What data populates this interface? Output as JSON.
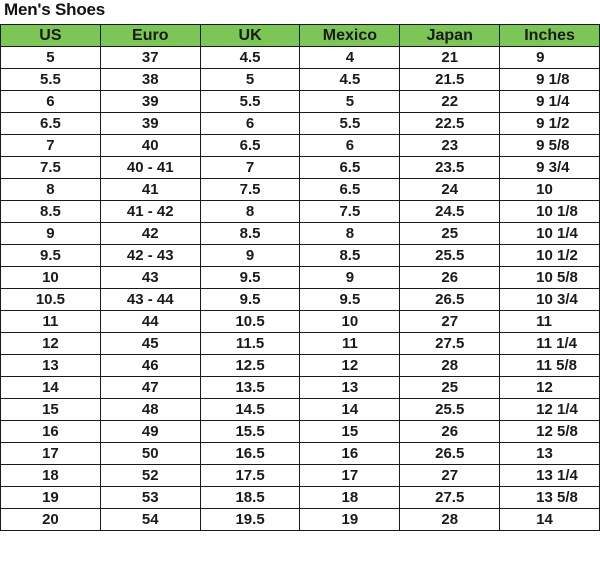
{
  "title": "Men's Shoes",
  "header_color": "#7cc655",
  "columns": [
    "US",
    "Euro",
    "UK",
    "Mexico",
    "Japan",
    "Inches"
  ],
  "rows": [
    [
      "5",
      "37",
      "4.5",
      "4",
      "21",
      "9"
    ],
    [
      "5.5",
      "38",
      "5",
      "4.5",
      "21.5",
      "9 1/8"
    ],
    [
      "6",
      "39",
      "5.5",
      "5",
      "22",
      "9 1/4"
    ],
    [
      "6.5",
      "39",
      "6",
      "5.5",
      "22.5",
      "9 1/2"
    ],
    [
      "7",
      "40",
      "6.5",
      "6",
      "23",
      "9 5/8"
    ],
    [
      "7.5",
      "40 - 41",
      "7",
      "6.5",
      "23.5",
      "9 3/4"
    ],
    [
      "8",
      "41",
      "7.5",
      "6.5",
      "24",
      "10"
    ],
    [
      "8.5",
      "41 - 42",
      "8",
      "7.5",
      "24.5",
      "10 1/8"
    ],
    [
      "9",
      "42",
      "8.5",
      "8",
      "25",
      "10 1/4"
    ],
    [
      "9.5",
      "42 - 43",
      "9",
      "8.5",
      "25.5",
      "10 1/2"
    ],
    [
      "10",
      "43",
      "9.5",
      "9",
      "26",
      "10 5/8"
    ],
    [
      "10.5",
      "43 - 44",
      "9.5",
      "9.5",
      "26.5",
      "10 3/4"
    ],
    [
      "11",
      "44",
      "10.5",
      "10",
      "27",
      "11"
    ],
    [
      "12",
      "45",
      "11.5",
      "11",
      "27.5",
      "11 1/4"
    ],
    [
      "13",
      "46",
      "12.5",
      "12",
      "28",
      "11 5/8"
    ],
    [
      "14",
      "47",
      "13.5",
      "13",
      "25",
      "12"
    ],
    [
      "15",
      "48",
      "14.5",
      "14",
      "25.5",
      "12 1/4"
    ],
    [
      "16",
      "49",
      "15.5",
      "15",
      "26",
      "12 5/8"
    ],
    [
      "17",
      "50",
      "16.5",
      "16",
      "26.5",
      "13"
    ],
    [
      "18",
      "52",
      "17.5",
      "17",
      "27",
      "13 1/4"
    ],
    [
      "19",
      "53",
      "18.5",
      "18",
      "27.5",
      "13 5/8"
    ],
    [
      "20",
      "54",
      "19.5",
      "19",
      "28",
      "14"
    ]
  ]
}
